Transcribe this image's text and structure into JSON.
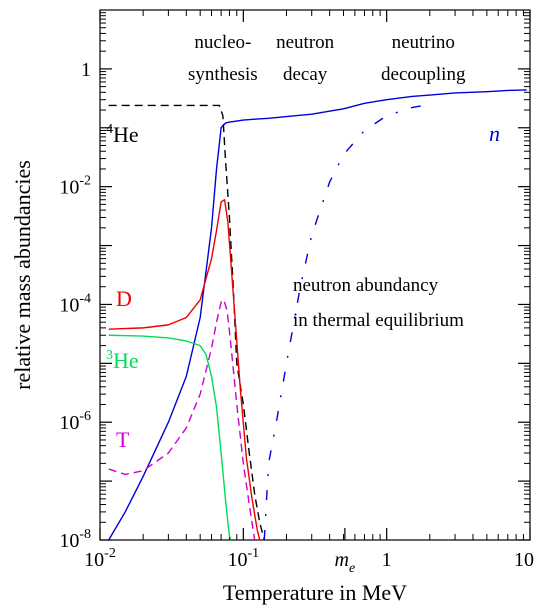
{
  "chart_data": {
    "type": "line",
    "xscale": "log",
    "yscale": "log",
    "xlim": [
      0.01,
      10
    ],
    "ylim": [
      1e-08,
      10
    ],
    "xlabel": "Temperature in MeV",
    "ylabel": "relative mass abundancies",
    "grid": false,
    "x_ticks": [
      {
        "value": 0.01,
        "label": "10",
        "exp": "-2"
      },
      {
        "value": 0.1,
        "label": "10",
        "exp": "-1"
      },
      {
        "value": 1,
        "label": "1",
        "exp": ""
      },
      {
        "value": 10,
        "label": "10",
        "exp": ""
      }
    ],
    "x_special_tick": {
      "value": 0.511,
      "label": "m",
      "sub": "e"
    },
    "y_ticks": [
      {
        "value": 1,
        "label": "1",
        "exp": ""
      },
      {
        "value": 0.01,
        "label": "10",
        "exp": "-2"
      },
      {
        "value": 0.0001,
        "label": "10",
        "exp": "-4"
      },
      {
        "value": 1e-06,
        "label": "10",
        "exp": "-6"
      },
      {
        "value": 1e-08,
        "label": "10",
        "exp": "-8"
      }
    ],
    "annotations": [
      {
        "lines": [
          "nucleo-",
          "synthesis"
        ],
        "x": 0.072
      },
      {
        "lines": [
          "neutron",
          "decay"
        ],
        "x": 0.27
      },
      {
        "lines": [
          "neutrino",
          "decoupling"
        ],
        "x": 1.8
      }
    ],
    "equilibrium_note": [
      "neutron abundancy",
      "in thermal equilibrium"
    ],
    "series": [
      {
        "name": "n",
        "label": "n",
        "color": "#0000dd",
        "dash": "solid",
        "x": [
          0.0115,
          0.015,
          0.02,
          0.03,
          0.04,
          0.05,
          0.06,
          0.065,
          0.07,
          0.075,
          0.08,
          0.09,
          0.1,
          0.12,
          0.15,
          0.2,
          0.3,
          0.5,
          0.7,
          1,
          1.5,
          2,
          3,
          5,
          7,
          9.5
        ],
        "y": [
          1e-08,
          3e-08,
          1.2e-07,
          1e-06,
          6e-06,
          6e-05,
          0.002,
          0.02,
          0.1,
          0.12,
          0.125,
          0.13,
          0.135,
          0.14,
          0.145,
          0.155,
          0.17,
          0.21,
          0.26,
          0.3,
          0.34,
          0.36,
          0.39,
          0.41,
          0.43,
          0.44
        ]
      },
      {
        "name": "4He",
        "label": "He",
        "label_sup": "4",
        "color": "#000000",
        "dash": "dashed",
        "x": [
          0.0115,
          0.02,
          0.04,
          0.06,
          0.068,
          0.072,
          0.075,
          0.08,
          0.085,
          0.09,
          0.1,
          0.11,
          0.12,
          0.13,
          0.14
        ],
        "y": [
          0.24,
          0.24,
          0.24,
          0.24,
          0.24,
          0.16,
          0.03,
          0.003,
          0.0002,
          1e-05,
          2e-06,
          3e-07,
          6e-08,
          2e-08,
          1e-08
        ]
      },
      {
        "name": "D",
        "label": "D",
        "color": "#ee0000",
        "dash": "solid",
        "x": [
          0.0115,
          0.02,
          0.03,
          0.04,
          0.05,
          0.06,
          0.065,
          0.07,
          0.074,
          0.078,
          0.082,
          0.088,
          0.095,
          0.105,
          0.115,
          0.125,
          0.13,
          0.135
        ],
        "y": [
          3.8e-05,
          4e-05,
          4.5e-05,
          6e-05,
          0.00012,
          0.0006,
          0.0018,
          0.0055,
          0.006,
          0.0025,
          0.0005,
          5e-05,
          4e-06,
          2.5e-07,
          5e-08,
          1.5e-08,
          1e-08,
          1e-08
        ]
      },
      {
        "name": "3He",
        "label": "He",
        "label_sup": "3",
        "color": "#00dd55",
        "dash": "solid",
        "x": [
          0.0115,
          0.02,
          0.03,
          0.04,
          0.05,
          0.055,
          0.06,
          0.065,
          0.07,
          0.075,
          0.078,
          0.08,
          0.082
        ],
        "y": [
          3e-05,
          2.9e-05,
          2.7e-05,
          2.4e-05,
          2e-05,
          1.4e-05,
          6e-06,
          1.8e-06,
          3e-07,
          5e-08,
          2e-08,
          1.2e-08,
          1e-08
        ]
      },
      {
        "name": "T",
        "label": "T",
        "color": "#cc00cc",
        "dash": "dashed",
        "x": [
          0.0115,
          0.015,
          0.02,
          0.03,
          0.04,
          0.05,
          0.06,
          0.065,
          0.07,
          0.073,
          0.077,
          0.082,
          0.09,
          0.1,
          0.11,
          0.12
        ],
        "y": [
          1.6e-07,
          1.3e-07,
          1.5e-07,
          3e-07,
          8e-07,
          3e-06,
          1.8e-05,
          5e-05,
          0.00011,
          0.00012,
          8e-05,
          2e-05,
          2e-06,
          2e-07,
          4e-08,
          1e-08
        ]
      },
      {
        "name": "n_equilibrium",
        "label": "",
        "color": "#0000dd",
        "dash": "dashdot",
        "x": [
          0.14,
          0.15,
          0.17,
          0.2,
          0.25,
          0.3,
          0.4,
          0.5,
          0.7,
          1,
          1.5,
          2
        ],
        "y": [
          1e-08,
          2e-07,
          1e-06,
          1e-05,
          0.0002,
          0.0015,
          0.012,
          0.035,
          0.09,
          0.16,
          0.22,
          0.25
        ]
      }
    ]
  }
}
